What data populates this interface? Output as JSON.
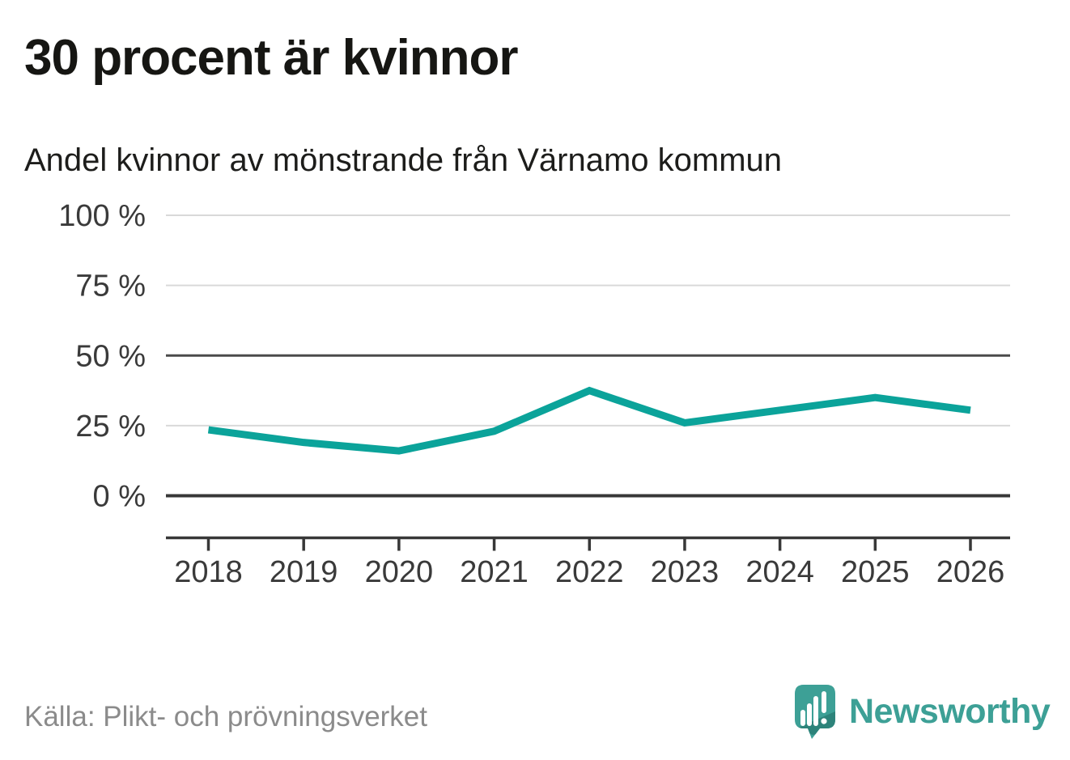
{
  "header": {
    "title": "30 procent är kvinnor",
    "subtitle": "Andel kvinnor av mönstrande från Värnamo kommun"
  },
  "footer": {
    "source": "Källa: Plikt- och prövningsverket",
    "brand": "Newsworthy"
  },
  "colors": {
    "line": "#0ba39a",
    "grid_light": "#d9d9d9",
    "grid_dark": "#4b4b4b",
    "axis": "#383838",
    "tick_text": "#3a3a3a",
    "title_text": "#161613",
    "source_text": "#8b8b8b",
    "brand_teal": "#3da096",
    "brand_teal_dark": "#2d837a"
  },
  "chart_data": {
    "type": "line",
    "title": "30 procent är kvinnor",
    "subtitle": "Andel kvinnor av mönstrande från Värnamo kommun",
    "x": [
      "2018",
      "2019",
      "2020",
      "2021",
      "2022",
      "2023",
      "2024",
      "2025",
      "2026"
    ],
    "series": [
      {
        "name": "Andel kvinnor av mönstrande",
        "color": "#0ba39a",
        "values": [
          23.5,
          19,
          16,
          23,
          37.5,
          26,
          30.5,
          35,
          30.5
        ]
      }
    ],
    "ylim": [
      0,
      100
    ],
    "yticks": [
      {
        "value": 100,
        "label": "100 %",
        "emphasis": false
      },
      {
        "value": 75,
        "label": "75 %",
        "emphasis": false
      },
      {
        "value": 50,
        "label": "50 %",
        "emphasis": true
      },
      {
        "value": 25,
        "label": "25 %",
        "emphasis": false
      },
      {
        "value": 0,
        "label": "0 %",
        "emphasis": true
      }
    ],
    "grid": "horizontal",
    "legend": "none",
    "source": "Källa: Plikt- och prövningsverket"
  }
}
